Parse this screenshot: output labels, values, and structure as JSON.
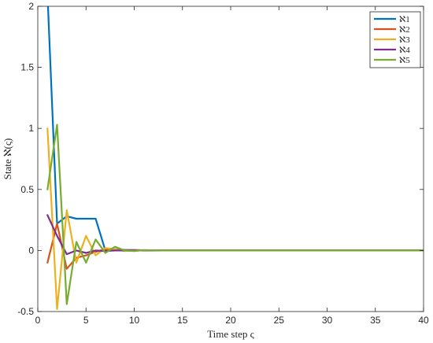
{
  "chart_data": {
    "type": "line",
    "title": "",
    "xlabel": "Time step ς",
    "ylabel": "State ℵ(ς)",
    "xlim": [
      0,
      40
    ],
    "ylim": [
      -0.5,
      2
    ],
    "xticks": [
      0,
      5,
      10,
      15,
      20,
      25,
      30,
      35,
      40
    ],
    "yticks": [
      -0.5,
      0,
      0.5,
      1,
      1.5,
      2
    ],
    "xtick_labels": [
      "0",
      "5",
      "10",
      "15",
      "20",
      "25",
      "30",
      "35",
      "40"
    ],
    "ytick_labels": [
      "-0.5",
      "0",
      "0.5",
      "1",
      "1.5",
      "2"
    ],
    "grid": false,
    "legend_position": "top-right",
    "x": [
      1,
      2,
      3,
      4,
      5,
      6,
      7,
      8,
      9,
      10,
      11,
      12,
      13,
      14,
      15,
      16,
      17,
      18,
      19,
      20,
      21,
      22,
      23,
      24,
      25,
      26,
      27,
      28,
      29,
      30,
      31,
      32,
      33,
      34,
      35,
      36,
      37,
      38,
      39,
      40
    ],
    "series": [
      {
        "name": "ℵ1",
        "color": "#0072BD",
        "values": [
          2.1,
          0.22,
          0.28,
          0.26,
          0.26,
          0.26,
          0.0,
          0.01,
          0.005,
          0.003,
          0.002,
          0.001,
          0,
          0,
          0,
          0,
          0,
          0,
          0,
          0,
          0,
          0,
          0,
          0,
          0,
          0,
          0,
          0,
          0,
          0,
          0,
          0,
          0,
          0,
          0,
          0,
          0,
          0,
          0,
          0
        ]
      },
      {
        "name": "ℵ2",
        "color": "#D95319",
        "values": [
          -0.1,
          0.22,
          -0.15,
          -0.06,
          -0.04,
          -0.01,
          0.01,
          0.0,
          0.0,
          0.003,
          0.001,
          0,
          0,
          0,
          0,
          0,
          0,
          0,
          0,
          0,
          0,
          0,
          0,
          0,
          0,
          0,
          0,
          0,
          0,
          0,
          0,
          0,
          0,
          0,
          0,
          0,
          0,
          0,
          0,
          0
        ]
      },
      {
        "name": "ℵ3",
        "color": "#EDB120",
        "values": [
          1.0,
          -0.48,
          0.33,
          -0.1,
          0.12,
          -0.04,
          0.02,
          0.01,
          -0.005,
          0.002,
          0.001,
          0,
          0,
          0,
          0,
          0,
          0,
          0,
          0,
          0,
          0,
          0,
          0,
          0,
          0,
          0,
          0,
          0,
          0,
          0,
          0,
          0,
          0,
          0,
          0,
          0,
          0,
          0,
          0,
          0
        ]
      },
      {
        "name": "ℵ4",
        "color": "#7E2F8E",
        "values": [
          0.29,
          0.12,
          -0.03,
          0.0,
          -0.02,
          0.0,
          -0.005,
          0.0,
          0.0,
          0.0,
          0,
          0,
          0,
          0,
          0,
          0,
          0,
          0,
          0,
          0,
          0,
          0,
          0,
          0,
          0,
          0,
          0,
          0,
          0,
          0,
          0,
          0,
          0,
          0,
          0,
          0,
          0,
          0,
          0,
          0
        ]
      },
      {
        "name": "ℵ5",
        "color": "#77AC30",
        "values": [
          0.5,
          1.03,
          -0.44,
          0.07,
          -0.1,
          0.09,
          -0.02,
          0.03,
          0.0,
          -0.005,
          0.003,
          0.001,
          0,
          0,
          0,
          0,
          0,
          0,
          0,
          0,
          0,
          0,
          0,
          0,
          0,
          0,
          0,
          0,
          0,
          0,
          0,
          0,
          0,
          0,
          0,
          0,
          0,
          0,
          0,
          0
        ]
      }
    ]
  }
}
